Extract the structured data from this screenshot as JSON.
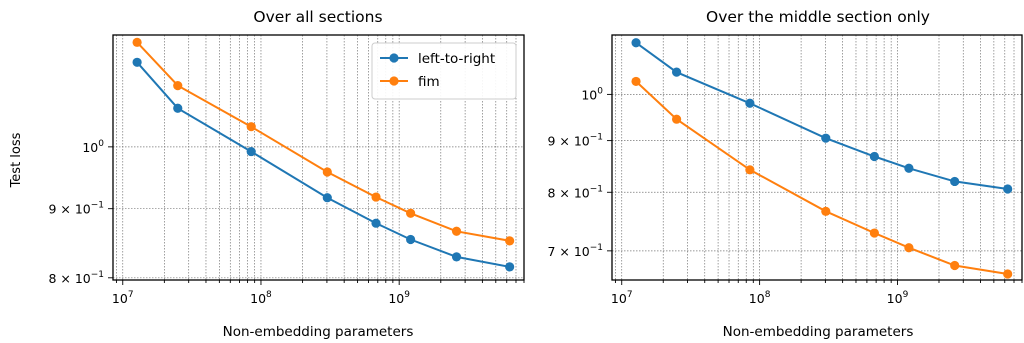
{
  "figure": {
    "ylabel_shared": "Test loss"
  },
  "chart_data": [
    {
      "type": "line",
      "title": "Over all sections",
      "xlabel": "Non-embedding parameters",
      "ylabel": "Test loss",
      "xscale": "log",
      "yscale": "log",
      "xlim": [
        8500000,
        8000000000
      ],
      "ylim": [
        0.797,
        1.21
      ],
      "x": [
        12700000,
        25000000,
        85000000,
        302000000,
        680000000,
        1210000000,
        2600000000,
        6300000000
      ],
      "xticks": [
        {
          "value": 10000000,
          "base": "10",
          "exp": "7"
        },
        {
          "value": 100000000,
          "base": "10",
          "exp": "8"
        },
        {
          "value": 1000000000,
          "base": "10",
          "exp": "9"
        }
      ],
      "yticks": [
        {
          "value": 1.0,
          "mant": "",
          "base": "10",
          "exp": "0"
        },
        {
          "value": 0.9,
          "mant": "9 × ",
          "base": "10",
          "exp": "−1"
        },
        {
          "value": 0.8,
          "mant": "8 × ",
          "base": "10",
          "exp": "−1"
        }
      ],
      "grid": true,
      "legend_position": "top-right",
      "series": [
        {
          "name": "left-to-right",
          "color": "#1f77b4",
          "values": [
            1.155,
            1.068,
            0.992,
            0.917,
            0.878,
            0.854,
            0.829,
            0.815
          ]
        },
        {
          "name": "fim",
          "color": "#ff7f0e",
          "values": [
            1.195,
            1.11,
            1.035,
            0.958,
            0.918,
            0.893,
            0.866,
            0.852
          ]
        }
      ]
    },
    {
      "type": "line",
      "title": "Over the middle section only",
      "xlabel": "Non-embedding parameters",
      "xscale": "log",
      "yscale": "log",
      "xlim": [
        8500000,
        8000000000
      ],
      "ylim": [
        0.655,
        1.145
      ],
      "x": [
        12700000,
        25000000,
        85000000,
        302000000,
        680000000,
        1210000000,
        2600000000,
        6300000000
      ],
      "xticks": [
        {
          "value": 10000000,
          "base": "10",
          "exp": "7"
        },
        {
          "value": 100000000,
          "base": "10",
          "exp": "8"
        },
        {
          "value": 1000000000,
          "base": "10",
          "exp": "9"
        }
      ],
      "yticks": [
        {
          "value": 1.0,
          "mant": "",
          "base": "10",
          "exp": "0"
        },
        {
          "value": 0.9,
          "mant": "9 × ",
          "base": "10",
          "exp": "−1"
        },
        {
          "value": 0.8,
          "mant": "8 × ",
          "base": "10",
          "exp": "−1"
        },
        {
          "value": 0.7,
          "mant": "7 × ",
          "base": "10",
          "exp": "−1"
        }
      ],
      "grid": true,
      "series": [
        {
          "name": "left-to-right",
          "color": "#1f77b4",
          "values": [
            1.125,
            1.052,
            0.98,
            0.905,
            0.868,
            0.845,
            0.82,
            0.806
          ]
        },
        {
          "name": "fim",
          "color": "#ff7f0e",
          "values": [
            1.03,
            0.945,
            0.842,
            0.766,
            0.729,
            0.705,
            0.677,
            0.664
          ]
        }
      ]
    }
  ]
}
